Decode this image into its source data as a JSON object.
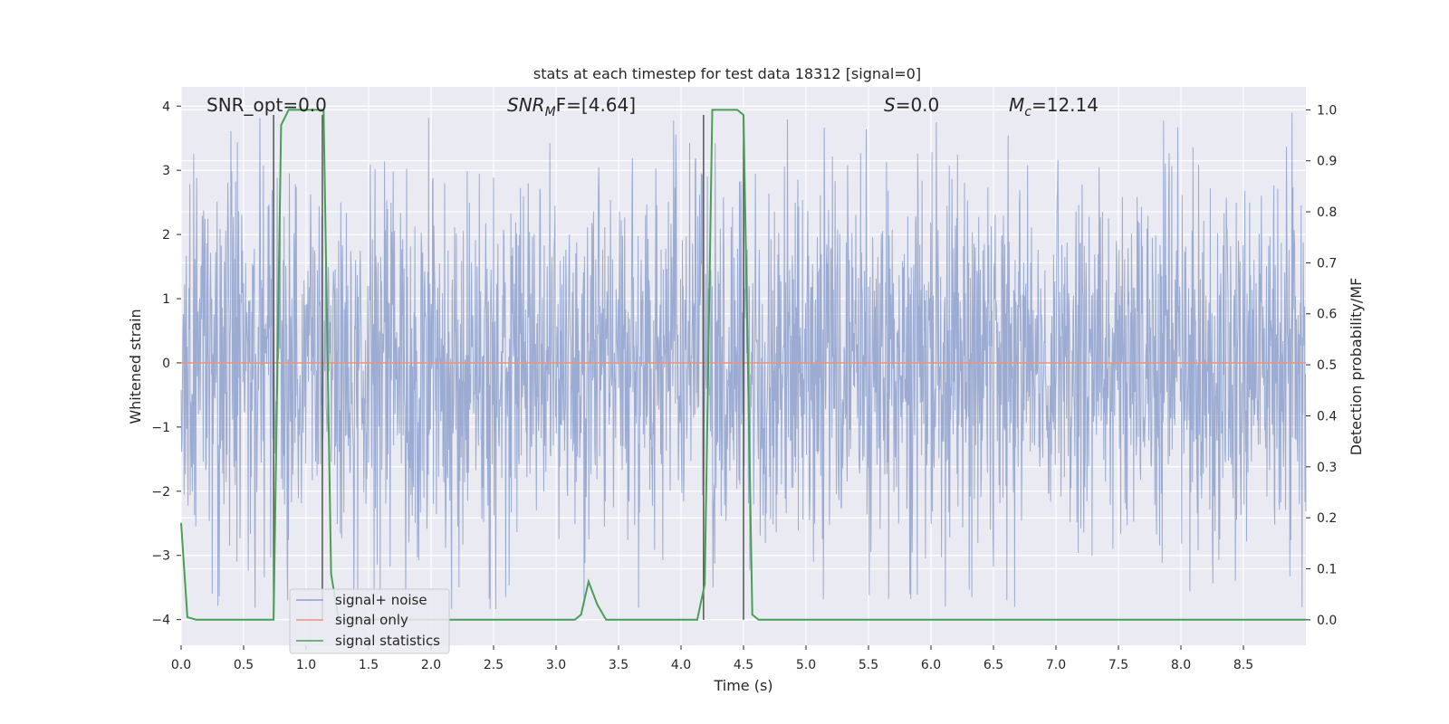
{
  "colors": {
    "plot_bg": "#eaeaf2",
    "grid": "#ffffff",
    "noise": "#8da0cb",
    "signal": "#e9967a",
    "stats": "#4a9e55",
    "marker": "#555555",
    "text": "#262626"
  },
  "chart_data": {
    "type": "line",
    "title": "stats at each timestep for test data 18312 [signal=0]",
    "xlabel": "Time (s)",
    "ylabel_left": "Whitened strain",
    "ylabel_right": "Detection probability/MF",
    "xlim": [
      0,
      9.0
    ],
    "ylim_left": [
      -4.4,
      4.3
    ],
    "ylim_right": [
      -0.05,
      1.045
    ],
    "xticks": [
      "0.0",
      "0.5",
      "1.0",
      "1.5",
      "2.0",
      "2.5",
      "3.0",
      "3.5",
      "4.0",
      "4.5",
      "5.0",
      "5.5",
      "6.0",
      "6.5",
      "7.0",
      "7.5",
      "8.0",
      "8.5"
    ],
    "yticks_left": [
      "−4",
      "−3",
      "−2",
      "−1",
      "0",
      "1",
      "2",
      "3",
      "4"
    ],
    "yticks_right": [
      "0.0",
      "0.1",
      "0.2",
      "0.3",
      "0.4",
      "0.5",
      "0.6",
      "0.7",
      "0.8",
      "0.9",
      "1.0"
    ],
    "annotations": {
      "snr_opt": "SNR_opt=0.0",
      "snr_mf_italic": "SNR",
      "snr_mf_sub": "M",
      "snr_mf_rest": "F=[4.64]",
      "s_italic": "S",
      "s_rest": "=0.0",
      "mc_italic": "M",
      "mc_sub": "c",
      "mc_rest": "=12.14"
    },
    "legend": {
      "placement": "lower-left",
      "entries": [
        "signal+ noise",
        "signal only",
        "signal statistics"
      ]
    },
    "series": [
      {
        "name": "signal+ noise",
        "kind": "noise",
        "std": 1.0,
        "typical_peak_range": [
          2.0,
          4.0
        ],
        "axis": "left"
      },
      {
        "name": "signal only",
        "kind": "constant",
        "value": 0.0,
        "axis": "left"
      },
      {
        "name": "signal statistics",
        "axis": "right",
        "x": [
          0.0,
          0.05,
          0.12,
          0.2,
          0.74,
          0.8,
          0.86,
          1.0,
          1.14,
          1.2,
          1.26,
          3.15,
          3.2,
          3.26,
          3.33,
          3.4,
          4.13,
          4.19,
          4.25,
          4.3,
          4.45,
          4.5,
          4.57,
          4.62,
          9.0
        ],
        "y": [
          0.19,
          0.005,
          0.0,
          0.0,
          0.0,
          0.97,
          1.0,
          1.0,
          1.0,
          0.09,
          0.0,
          0.0,
          0.01,
          0.075,
          0.03,
          0.0,
          0.0,
          0.07,
          1.0,
          1.0,
          1.0,
          0.99,
          0.01,
          0.0,
          0.0
        ]
      }
    ],
    "markers": [
      {
        "x": 0.74,
        "y_top": 0.99
      },
      {
        "x": 1.13,
        "y_top": 0.99
      },
      {
        "x": 4.18,
        "y_top": 0.99
      },
      {
        "x": 4.5,
        "y_top": 0.99
      }
    ]
  }
}
